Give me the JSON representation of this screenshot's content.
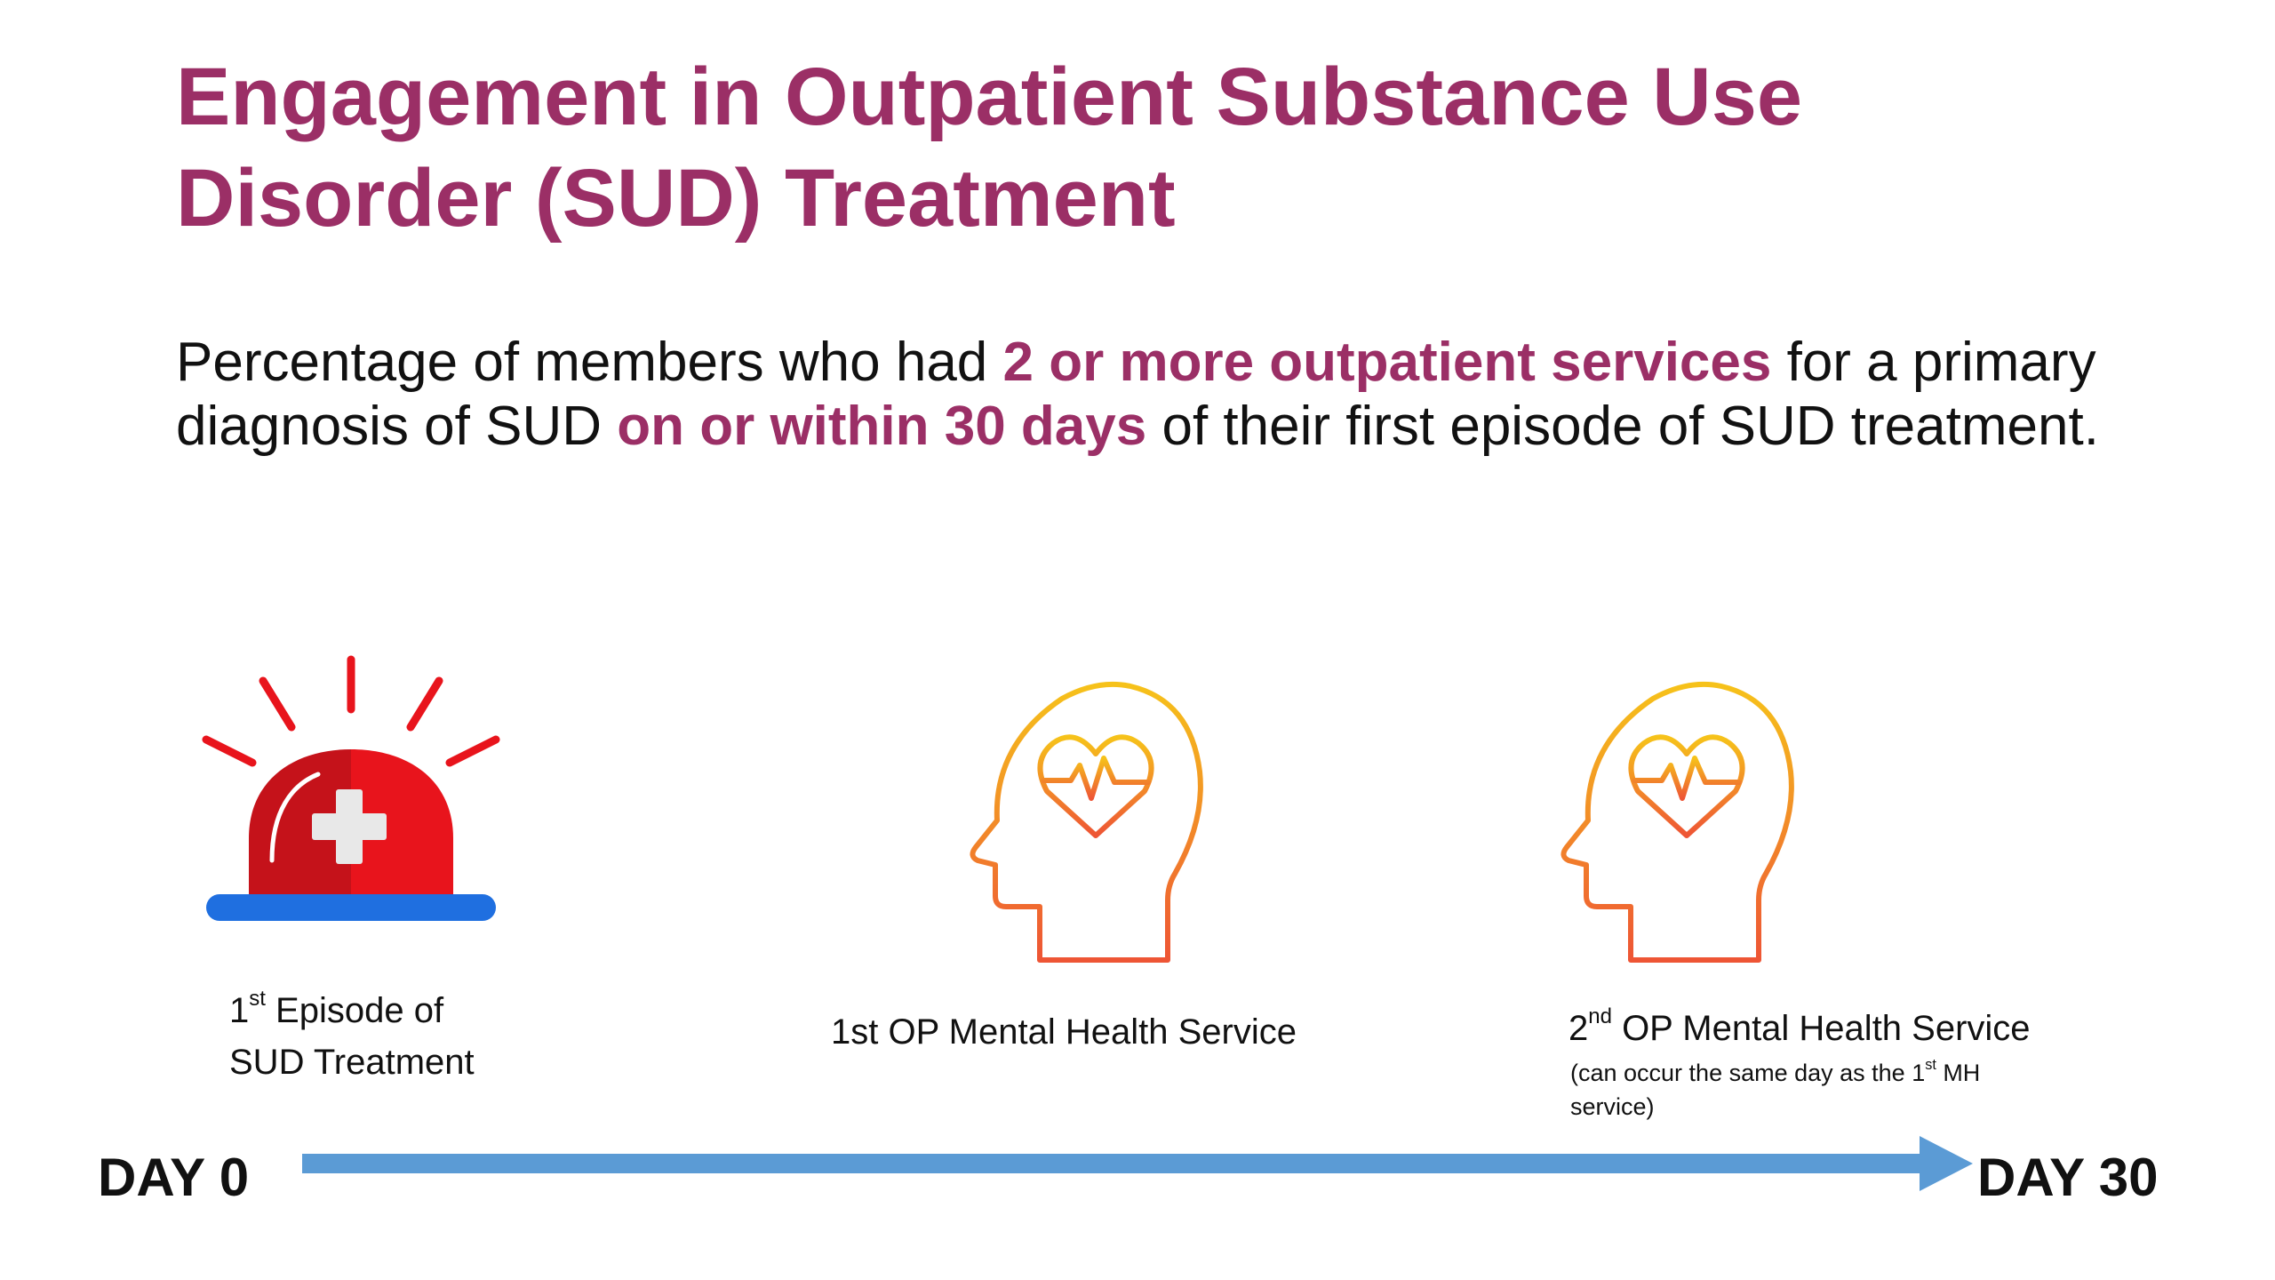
{
  "title": "Engagement in Outpatient Substance Use Disorder (SUD) Treatment",
  "subtitle": {
    "part1": "Percentage of members who had ",
    "highlight1": "2 or more outpatient services",
    "part2": " for a primary diagnosis of SUD ",
    "highlight2": "on or within 30 days",
    "part3": " of their first episode of SUD treatment."
  },
  "steps": {
    "episode": {
      "num": "1",
      "sup": "st",
      "line1": " Episode of",
      "line2": "SUD Treatment"
    },
    "first_service": {
      "label": "1st OP Mental Health Service"
    },
    "second_service": {
      "num": "2",
      "sup": "nd",
      "label": " OP Mental Health Service",
      "note_part1": "(can occur the same day as the 1",
      "note_sup": "st",
      "note_part2": " MH service)"
    }
  },
  "timeline": {
    "start": "DAY 0",
    "end": "DAY 30"
  },
  "colors": {
    "title": "#9b2f66",
    "highlight": "#9b2f66",
    "arrow": "#5b9bd5",
    "siren_red": "#e8141c",
    "siren_base": "#1f6fe0",
    "head_gradient_top": "#f6c21a",
    "head_gradient_bottom": "#ee5535"
  },
  "icons": [
    "siren-icon",
    "head-heart-icon",
    "head-heart-icon"
  ]
}
